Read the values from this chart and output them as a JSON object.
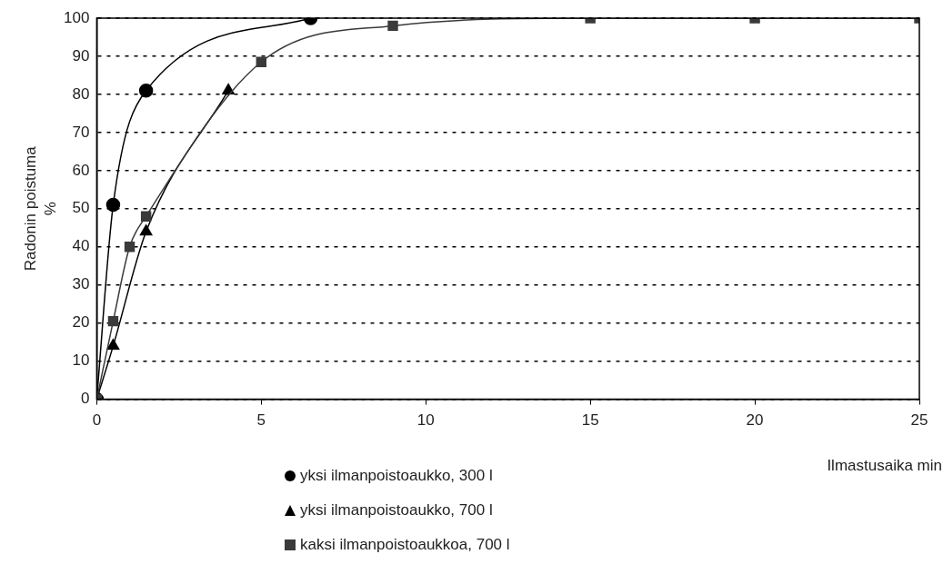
{
  "chart_data": {
    "type": "line",
    "xlabel": "Ilmastusaika min",
    "ylabel": "Radonin poistuma\n%",
    "xlim": [
      0,
      25
    ],
    "xticks": [
      0,
      5,
      10,
      15,
      20,
      25
    ],
    "ylim": [
      0,
      100
    ],
    "yticks": [
      0,
      10,
      20,
      30,
      40,
      50,
      60,
      70,
      80,
      90,
      100
    ],
    "grid": "y",
    "legend": "bottom",
    "series": [
      {
        "name": "yksi ilmanpoistoaukko, 300 l",
        "color": "#000000",
        "marker": "circle",
        "x": [
          0,
          0.5,
          1.5,
          6.5
        ],
        "values": [
          0,
          51,
          81,
          100
        ]
      },
      {
        "name": "yksi ilmanpoistoaukko, 700 l",
        "color": "#000000",
        "marker": "triangle",
        "x": [
          0,
          0.5,
          1.5,
          4
        ],
        "values": [
          0,
          14,
          44,
          81
        ]
      },
      {
        "name": "kaksi ilmanpoistoaukkoa, 700 l",
        "color": "#3a3a3a",
        "marker": "square",
        "x": [
          0,
          0.5,
          1,
          1.5,
          5,
          9,
          15,
          20,
          25
        ],
        "values": [
          0,
          20.5,
          40,
          48,
          88.5,
          98,
          100,
          100,
          100
        ]
      }
    ]
  }
}
